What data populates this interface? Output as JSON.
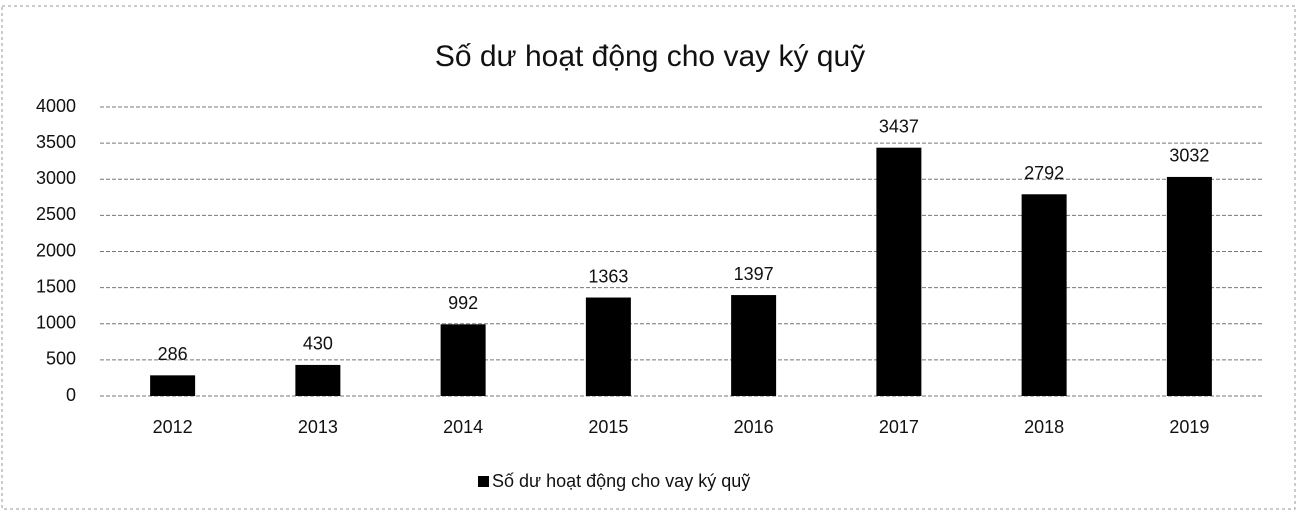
{
  "chart_data": {
    "type": "bar",
    "title": "Số dư hoạt động cho vay ký quỹ",
    "categories": [
      "2012",
      "2013",
      "2014",
      "2015",
      "2016",
      "2017",
      "2018",
      "2019"
    ],
    "series": [
      {
        "name": "Số dư hoạt động cho vay ký quỹ",
        "color": "#000000",
        "values": [
          286,
          430,
          992,
          1363,
          1397,
          3437,
          2792,
          3032
        ]
      }
    ],
    "ylim": [
      0,
      4000
    ],
    "yticks": [
      0,
      500,
      1000,
      1500,
      2000,
      2500,
      3000,
      3500,
      4000
    ],
    "grid": true,
    "legend": "bottom"
  }
}
